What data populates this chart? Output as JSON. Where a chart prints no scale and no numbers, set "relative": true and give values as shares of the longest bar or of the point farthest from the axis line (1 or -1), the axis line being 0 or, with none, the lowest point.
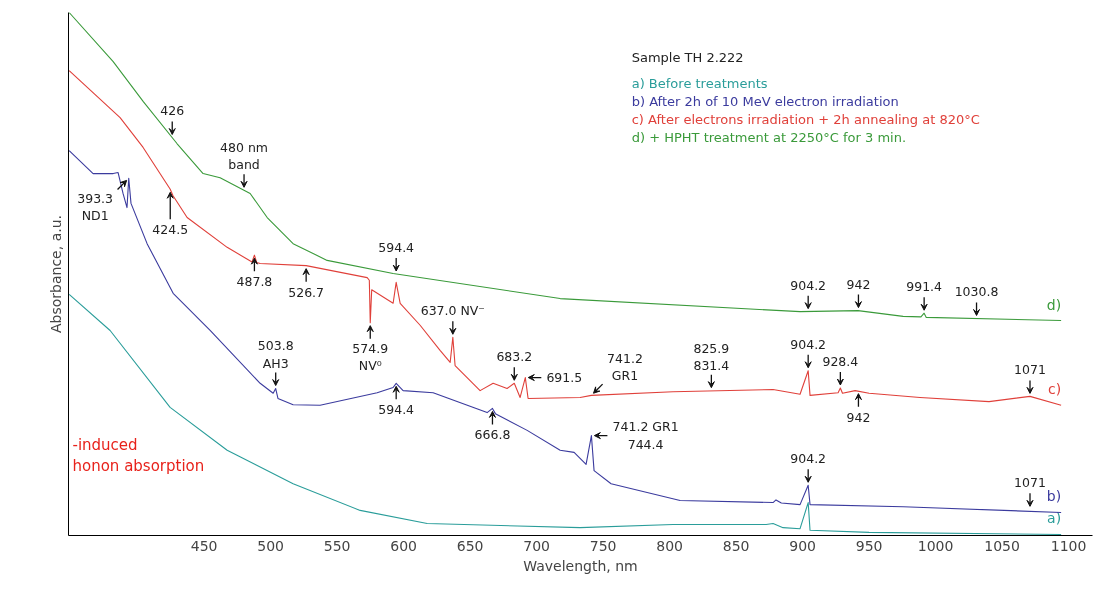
{
  "chart_data": {
    "type": "line",
    "relative": true,
    "xlabel": "Wavelength, nm",
    "ylabel": "Absorbance, a.u.",
    "legend_title": "Sample TH 2.222",
    "legend": "right",
    "xlim": [
      348,
      1118
    ],
    "xticks": [
      450,
      500,
      550,
      600,
      650,
      700,
      750,
      800,
      850,
      900,
      950,
      1000,
      1050,
      1100
    ],
    "series": [
      {
        "name": "a)",
        "color": "#2a9d9a",
        "x": [
          348.5,
          379.3,
          424.4,
          467.3,
          516.9,
          567.3,
          617.7,
          732.7,
          802.6,
          872.6,
          877.8,
          885.3,
          898.1,
          904.2,
          905.6,
          950.0,
          1094.4
        ],
        "values": [
          0.461,
          0.392,
          0.245,
          0.163,
          0.099,
          0.048,
          0.023,
          0.015,
          0.021,
          0.021,
          0.023,
          0.015,
          0.013,
          0.063,
          0.01,
          0.006,
          0.002
        ]
      },
      {
        "name": "b)",
        "color": "#3b3b9e",
        "x": [
          348.5,
          366.5,
          381.6,
          385.3,
          389,
          392,
          393.3,
          395,
          407.1,
          426.7,
          454.5,
          492.1,
          501.9,
          503.8,
          505.5,
          516.9,
          537.2,
          580.1,
          592.1,
          594.4,
          599.6,
          622.2,
          662.8,
          666.8,
          669,
          692.9,
          717.7,
          728.2,
          737.2,
          741.2,
          743.2,
          756,
          807.9,
          877.8,
          880,
          884,
          898.1,
          904.2,
          905.6,
          975.6,
          1094.4
        ],
        "values": [
          0.736,
          0.692,
          0.692,
          0.694,
          0.654,
          0.627,
          0.683,
          0.635,
          0.558,
          0.463,
          0.392,
          0.291,
          0.272,
          0.281,
          0.262,
          0.25,
          0.249,
          0.273,
          0.283,
          0.291,
          0.277,
          0.273,
          0.235,
          0.243,
          0.233,
          0.201,
          0.163,
          0.159,
          0.136,
          0.191,
          0.124,
          0.099,
          0.067,
          0.063,
          0.068,
          0.062,
          0.059,
          0.096,
          0.059,
          0.055,
          0.044
        ]
      },
      {
        "name": "c)",
        "color": "#e0403a",
        "x": [
          348.5,
          386.8,
          404.1,
          424.5,
          426.5,
          437.2,
          467.3,
          486,
          487.8,
          489.5,
          492.1,
          526.7,
          572.6,
          574.2,
          574.9,
          576,
          592.1,
          594.4,
          597.4,
          612.4,
          627.4,
          635.0,
          637.0,
          638.7,
          657.5,
          667.3,
          677.8,
          683.2,
          687.6,
          691.5,
          693.6,
          732.7,
          741.2,
          802.6,
          877.8,
          898.1,
          904.2,
          905.6,
          926.7,
          928.4,
          930,
          939.5,
          950.0,
          988.3,
          1040.2,
          1071,
          1094.4
        ],
        "values": [
          0.889,
          0.799,
          0.742,
          0.662,
          0.65,
          0.608,
          0.551,
          0.523,
          0.536,
          0.522,
          0.52,
          0.516,
          0.493,
          0.488,
          0.407,
          0.47,
          0.444,
          0.484,
          0.444,
          0.402,
          0.354,
          0.331,
          0.379,
          0.325,
          0.277,
          0.291,
          0.281,
          0.291,
          0.264,
          0.302,
          0.262,
          0.264,
          0.268,
          0.275,
          0.279,
          0.27,
          0.315,
          0.268,
          0.273,
          0.282,
          0.272,
          0.277,
          0.272,
          0.264,
          0.256,
          0.266,
          0.249
        ]
      },
      {
        "name": "d)",
        "color": "#3a9a3a",
        "x": [
          348.5,
          381.6,
          404.1,
          429.7,
          449.2,
          462.0,
          484.6,
          497.4,
          516.9,
          542.5,
          592.1,
          717.7,
          898.1,
          941.7,
          975.6,
          989,
          991.4,
          993,
          1094.4
        ],
        "values": [
          1.0,
          0.906,
          0.83,
          0.749,
          0.692,
          0.684,
          0.654,
          0.608,
          0.558,
          0.526,
          0.501,
          0.453,
          0.428,
          0.43,
          0.419,
          0.418,
          0.425,
          0.417,
          0.411
        ]
      }
    ],
    "annotations": [
      {
        "text": "426",
        "x": 426,
        "y": 0.761
      },
      {
        "text": "480 nm\nband",
        "x": 480,
        "y": 0.66
      },
      {
        "text": "594.4",
        "x": 594.4,
        "y": 0.5
      },
      {
        "text": "904.2",
        "x": 904.2,
        "y": 0.428
      },
      {
        "text": "942",
        "x": 942,
        "y": 0.43
      },
      {
        "text": "991.4",
        "x": 991.4,
        "y": 0.425
      },
      {
        "text": "1030.8",
        "x": 1030.8,
        "y": 0.415
      },
      {
        "text": "424.5",
        "x": 424.5,
        "y": 0.662
      },
      {
        "text": "487.8",
        "x": 487.8,
        "y": 0.536
      },
      {
        "text": "526.7",
        "x": 526.7,
        "y": 0.516
      },
      {
        "text": "574.9\nNV⁰",
        "x": 574.9,
        "y": 0.407
      },
      {
        "text": "637.0 NV⁻",
        "x": 637.0,
        "y": 0.379
      },
      {
        "text": "683.2",
        "x": 683.2,
        "y": 0.291
      },
      {
        "text": "691.5",
        "x": 691.5,
        "y": 0.302
      },
      {
        "text": "741.2\nGR1",
        "x": 741.2,
        "y": 0.268
      },
      {
        "text": "825.9\n831.4",
        "x": 831.4,
        "y": 0.277
      },
      {
        "text": "904.2",
        "x": 904.2,
        "y": 0.315
      },
      {
        "text": "928.4",
        "x": 928.4,
        "y": 0.282
      },
      {
        "text": "942",
        "x": 942,
        "y": 0.277
      },
      {
        "text": "1071",
        "x": 1071,
        "y": 0.266
      },
      {
        "text": "393.3\nND1",
        "x": 393.3,
        "y": 0.683
      },
      {
        "text": "503.8\nAH3",
        "x": 503.8,
        "y": 0.281
      },
      {
        "text": "594.4",
        "x": 594.4,
        "y": 0.291
      },
      {
        "text": "666.8",
        "x": 666.8,
        "y": 0.243
      },
      {
        "text": "741.2 GR1\n744.4",
        "x": 741.2,
        "y": 0.191
      },
      {
        "text": "904.2",
        "x": 904.2,
        "y": 0.096
      },
      {
        "text": "1071",
        "x": 1071,
        "y": 0.05
      },
      "a) Before treatments",
      "b) After 2h of 10 MeV electron irradiation",
      "c) After electrons irradiation + 2h annealing at 820°C",
      "d) + HPHT treatment at 2250°C for 3 min.",
      "-induced\nhonon absorption"
    ]
  }
}
